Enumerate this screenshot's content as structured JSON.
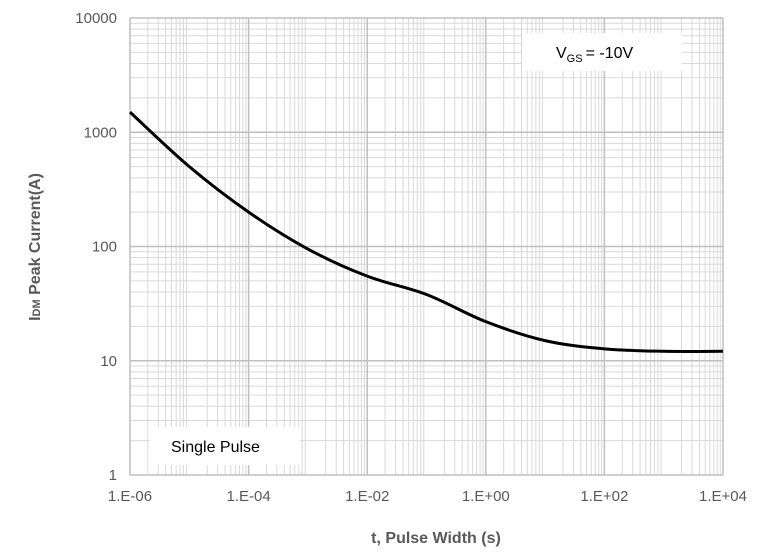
{
  "chart_data": {
    "type": "line",
    "title": "",
    "xlabel": "t, Pulse Width (s)",
    "ylabel_prefix": "I",
    "ylabel_subscript": "DM",
    "ylabel_rest": " Peak Current(A)",
    "xscale": "log",
    "yscale": "log",
    "xlim": [
      1e-06,
      10000
    ],
    "ylim": [
      1,
      10000
    ],
    "x_ticks": [
      1e-06,
      0.0001,
      0.01,
      1,
      100,
      10000
    ],
    "x_tick_labels": [
      "1.E-06",
      "1.E-04",
      "1.E-02",
      "1.E+00",
      "1.E+02",
      "1.E+04"
    ],
    "y_ticks": [
      1,
      10,
      100,
      1000,
      10000
    ],
    "y_tick_labels": [
      "1",
      "10",
      "100",
      "1000",
      "10000"
    ],
    "grid": true,
    "annotations": {
      "vgs": {
        "prefix": "V",
        "subscript": "GS",
        "suffix": "= -10V"
      },
      "pulse": "Single Pulse"
    },
    "series": [
      {
        "color": "#000000",
        "x": [
          1e-06,
          1e-05,
          0.0001,
          0.001,
          0.01,
          0.1,
          1,
          10,
          100,
          1000,
          10000
        ],
        "y": [
          1500,
          500,
          200,
          95,
          55,
          38,
          22,
          15,
          12.7,
          12.1,
          12.1
        ]
      }
    ]
  }
}
